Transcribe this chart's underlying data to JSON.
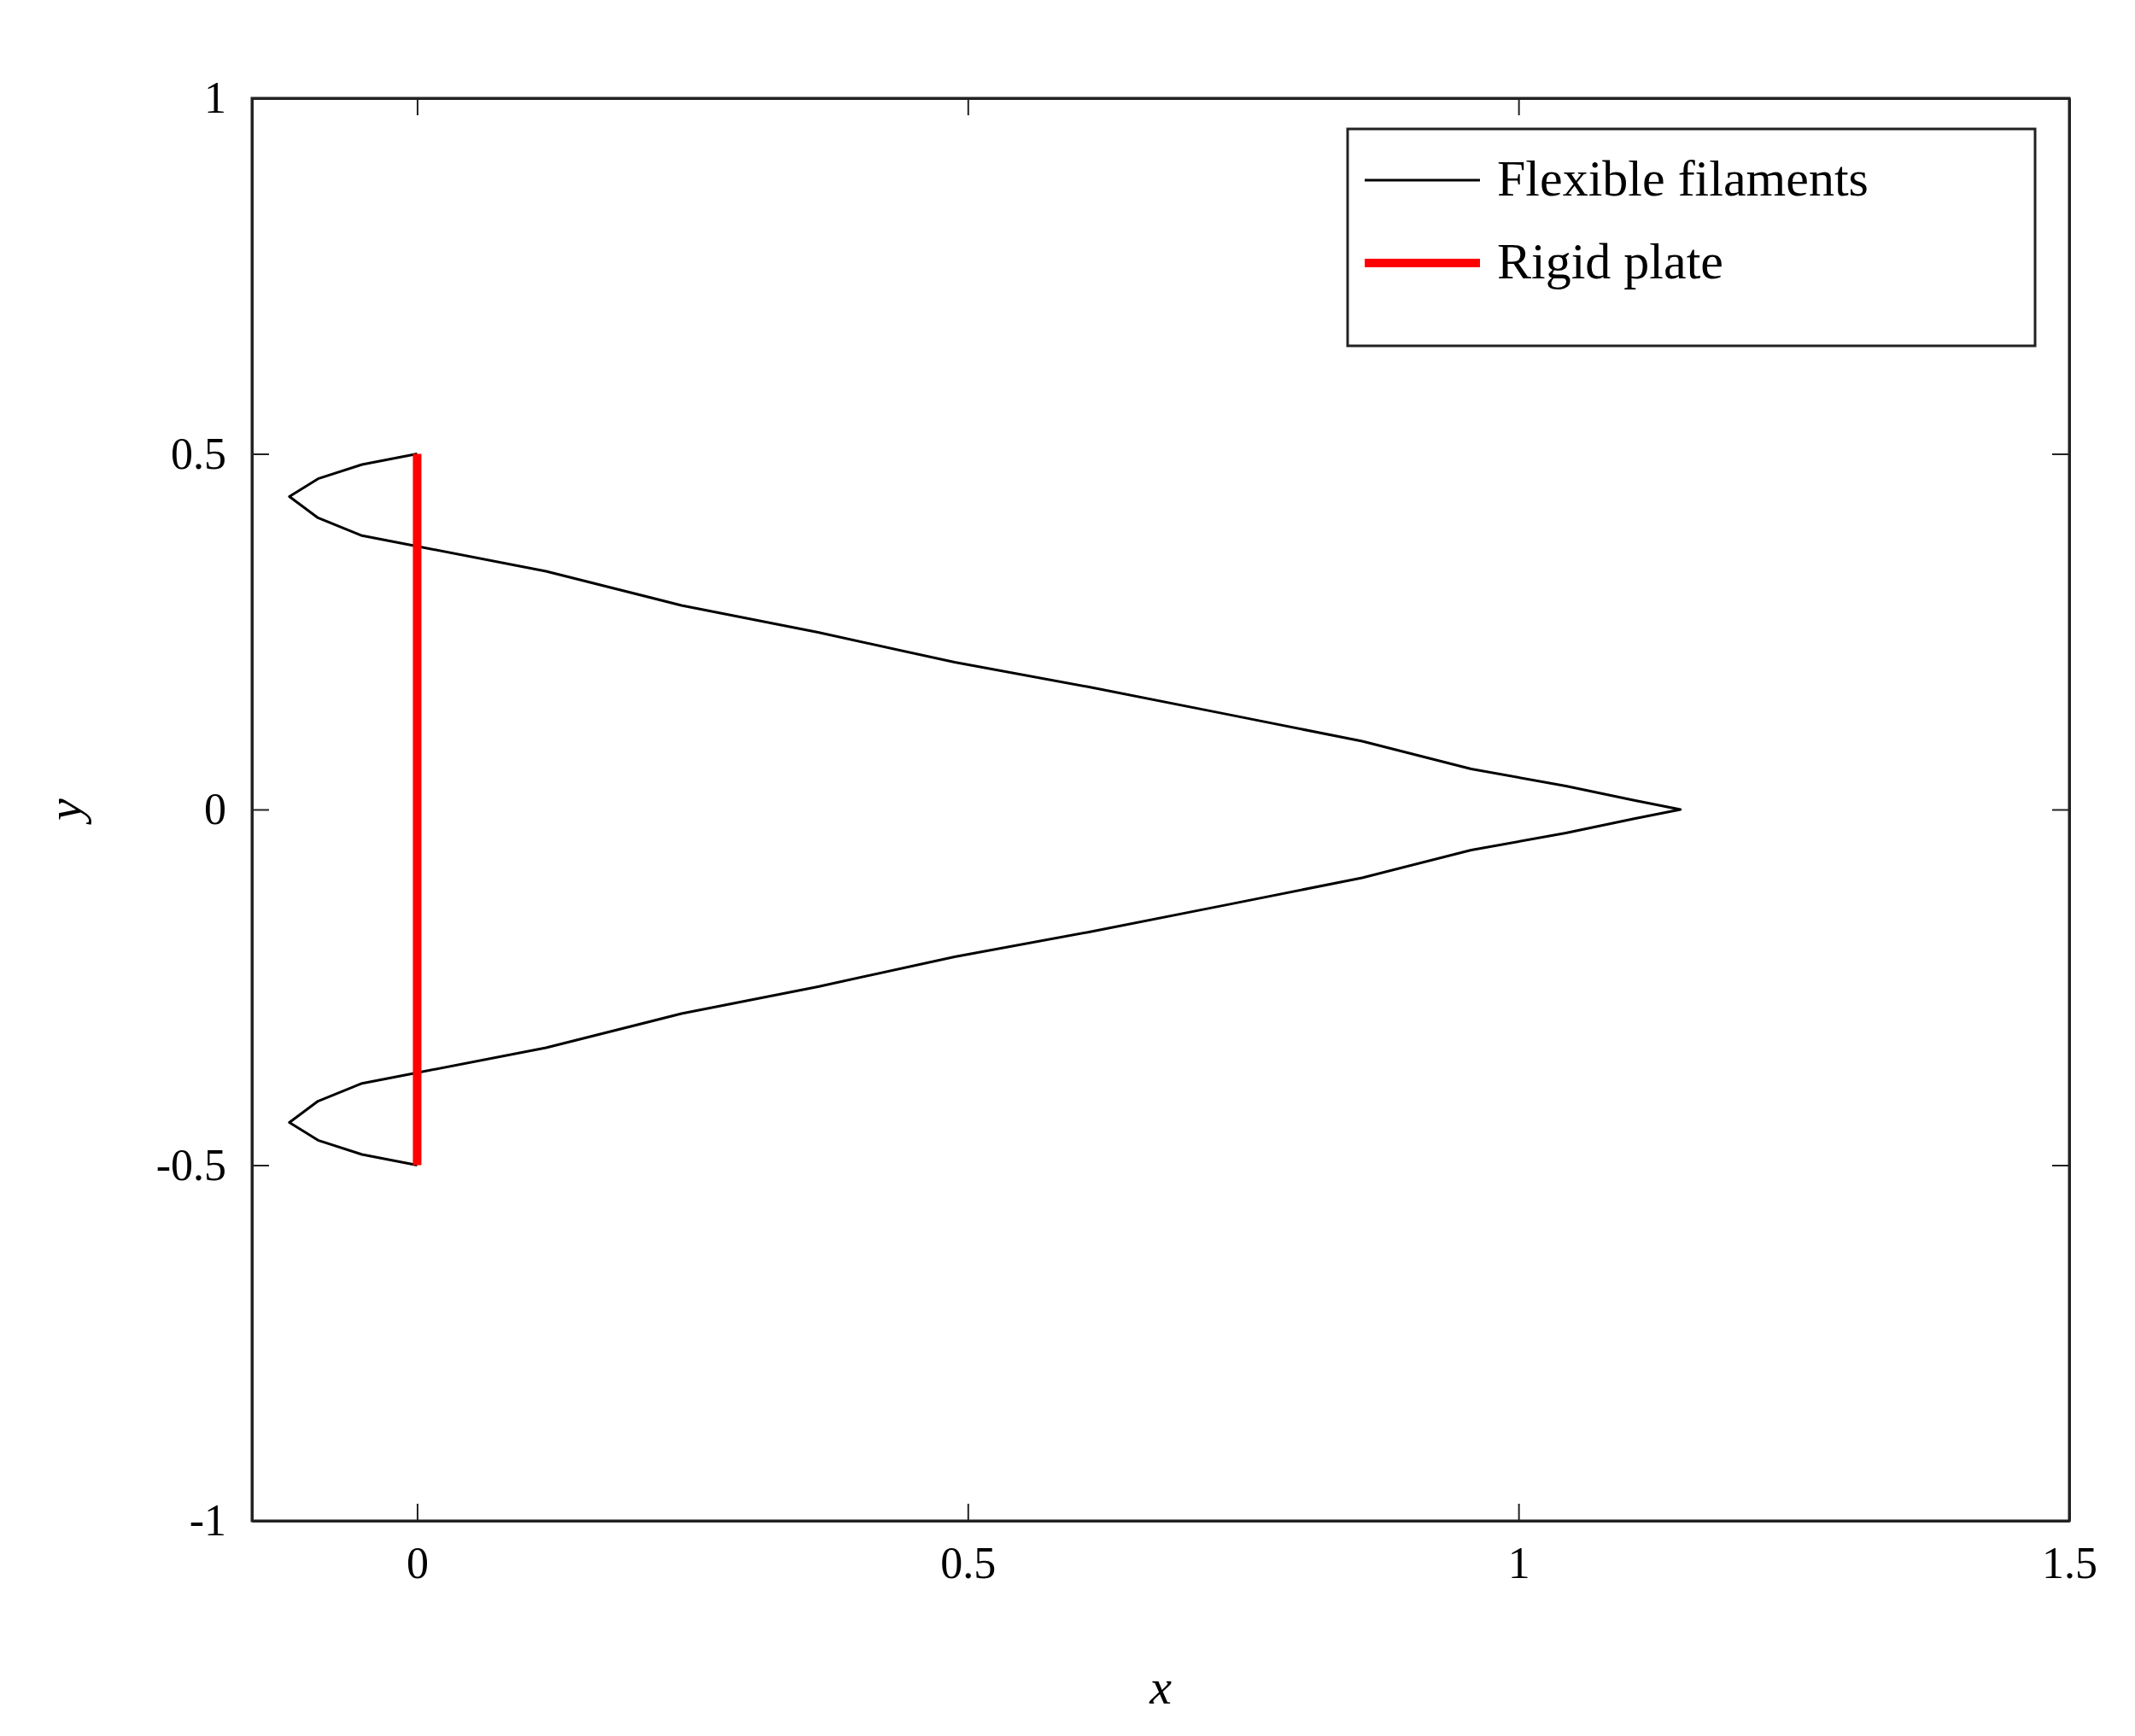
{
  "chart_data": {
    "type": "line",
    "xlabel": "x",
    "ylabel": "y",
    "xlim": [
      -0.15,
      1.5
    ],
    "ylim": [
      -1,
      1
    ],
    "xticks": [
      0,
      0.5,
      1,
      1.5
    ],
    "yticks": [
      -1,
      -0.5,
      0,
      0.5,
      1
    ],
    "grid": false,
    "legend": "top right",
    "marker": "none",
    "line_style": "solid",
    "series": [
      {
        "name": "Flexible filaments",
        "color": "#000000",
        "x": [
          0,
          -0.05,
          -0.09,
          -0.116,
          -0.09,
          -0.05,
          0,
          0.117,
          0.24,
          0.364,
          0.488,
          0.611,
          0.735,
          0.858,
          0.957,
          1.043,
          1.105,
          1.147,
          1.105,
          1.043,
          0.957,
          0.858,
          0.735,
          0.611,
          0.488,
          0.364,
          0.24,
          0.117,
          0,
          -0.05,
          -0.09,
          -0.116,
          -0.09,
          -0.05,
          0
        ],
        "values": [
          0.5,
          0.485,
          0.465,
          0.44,
          0.41,
          0.385,
          0.37,
          0.335,
          0.287,
          0.249,
          0.207,
          0.172,
          0.134,
          0.096,
          0.057,
          0.033,
          0.013,
          0,
          -0.013,
          -0.033,
          -0.057,
          -0.096,
          -0.134,
          -0.172,
          -0.207,
          -0.249,
          -0.287,
          -0.335,
          -0.37,
          -0.385,
          -0.41,
          -0.44,
          -0.465,
          -0.485,
          -0.5
        ]
      },
      {
        "name": "Rigid plate",
        "color": "#ff0000",
        "x": [
          0,
          0
        ],
        "values": [
          -0.5,
          0.5
        ]
      }
    ]
  }
}
